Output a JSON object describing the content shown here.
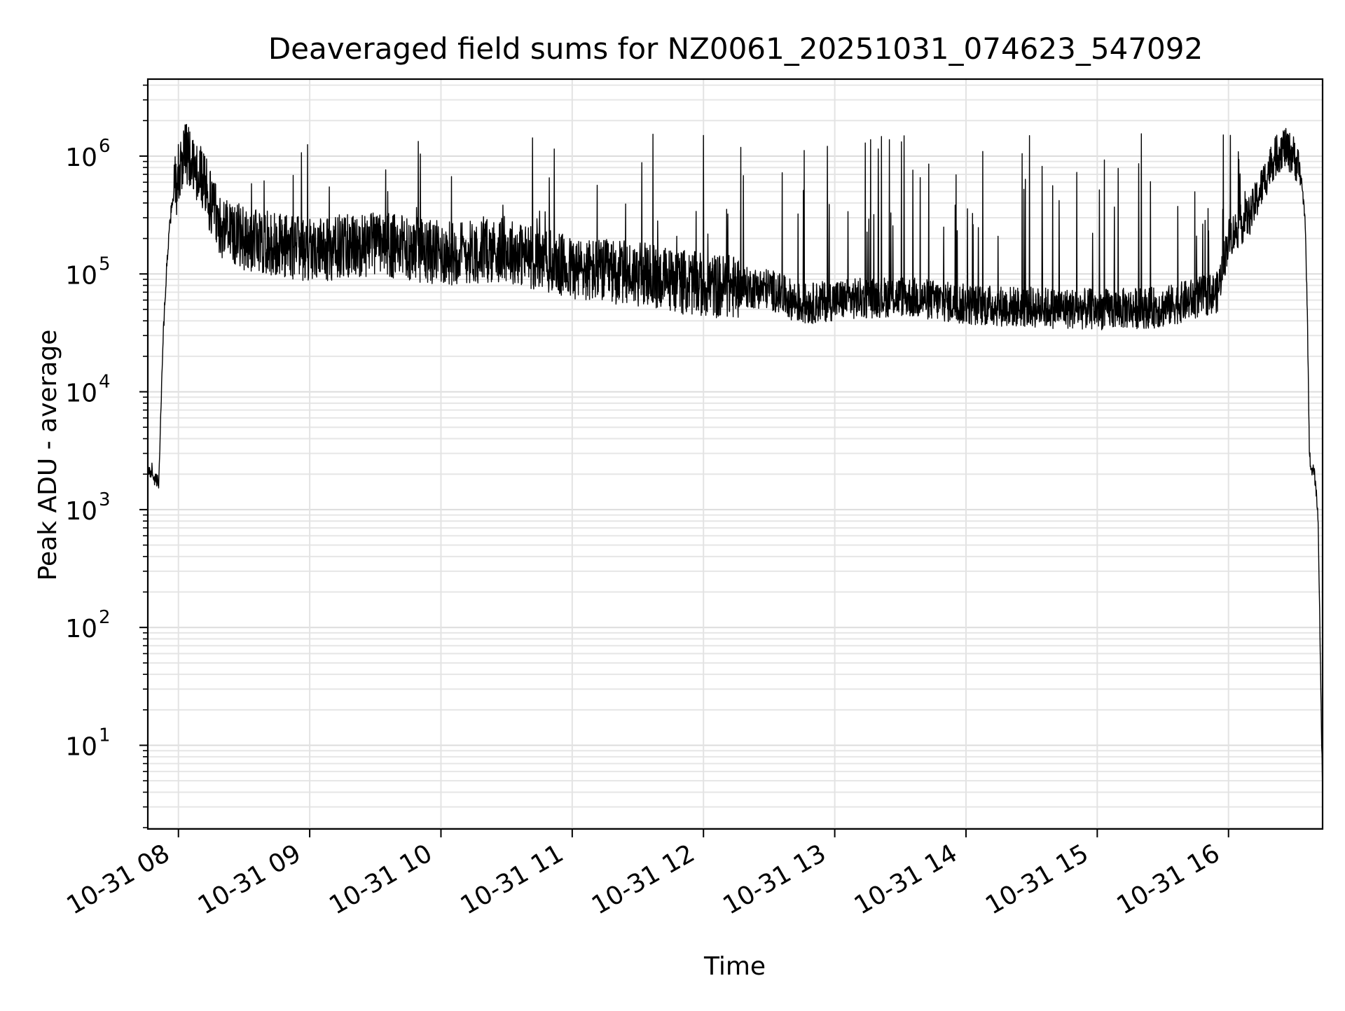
{
  "chart_data": {
    "type": "line",
    "title": "Deaveraged field sums for NZ0061_20251031_074623_547092",
    "xlabel": "Time",
    "ylabel": "Peak ADU - average",
    "yscale": "log",
    "ylim": [
      1.95,
      4500000
    ],
    "xlim": [
      "2025-10-31 07:46",
      "2025-10-31 16:43"
    ],
    "grid": true,
    "line_color": "#000000",
    "x_ticks": [
      {
        "value": "2025-10-31 08:00",
        "label": "10-31 08"
      },
      {
        "value": "2025-10-31 09:00",
        "label": "10-31 09"
      },
      {
        "value": "2025-10-31 10:00",
        "label": "10-31 10"
      },
      {
        "value": "2025-10-31 11:00",
        "label": "10-31 11"
      },
      {
        "value": "2025-10-31 12:00",
        "label": "10-31 12"
      },
      {
        "value": "2025-10-31 13:00",
        "label": "10-31 13"
      },
      {
        "value": "2025-10-31 14:00",
        "label": "10-31 14"
      },
      {
        "value": "2025-10-31 15:00",
        "label": "10-31 15"
      },
      {
        "value": "2025-10-31 16:00",
        "label": "10-31 16"
      }
    ],
    "y_ticks": [
      {
        "value": 10,
        "base": "10",
        "exp": "1"
      },
      {
        "value": 100,
        "base": "10",
        "exp": "2"
      },
      {
        "value": 1000,
        "base": "10",
        "exp": "3"
      },
      {
        "value": 10000,
        "base": "10",
        "exp": "4"
      },
      {
        "value": 100000,
        "base": "10",
        "exp": "5"
      },
      {
        "value": 1000000,
        "base": "10",
        "exp": "6"
      }
    ],
    "series": [
      {
        "x": [
          "2025-10-31 07:46",
          "2025-10-31 07:48",
          "2025-10-31 07:49",
          "2025-10-31 07:51",
          "2025-10-31 07:53",
          "2025-10-31 07:55",
          "2025-10-31 07:57",
          "2025-10-31 08:00",
          "2025-10-31 08:03",
          "2025-10-31 08:07",
          "2025-10-31 08:10",
          "2025-10-31 08:15",
          "2025-10-31 08:20",
          "2025-10-31 08:30",
          "2025-10-31 08:45",
          "2025-10-31 09:00",
          "2025-10-31 09:30",
          "2025-10-31 10:00",
          "2025-10-31 10:30",
          "2025-10-31 11:00",
          "2025-10-31 11:30",
          "2025-10-31 12:00",
          "2025-10-31 12:30",
          "2025-10-31 12:45",
          "2025-10-31 13:00",
          "2025-10-31 13:30",
          "2025-10-31 14:00",
          "2025-10-31 14:30",
          "2025-10-31 15:00",
          "2025-10-31 15:30",
          "2025-10-31 15:55",
          "2025-10-31 16:00",
          "2025-10-31 16:10",
          "2025-10-31 16:20",
          "2025-10-31 16:25",
          "2025-10-31 16:30",
          "2025-10-31 16:33",
          "2025-10-31 16:35",
          "2025-10-31 16:36",
          "2025-10-31 16:37",
          "2025-10-31 16:38",
          "2025-10-31 16:39",
          "2025-10-31 16:40",
          "2025-10-31 16:41",
          "2025-10-31 16:42",
          "2025-10-31 16:43"
        ],
        "y": [
          2000,
          2200,
          1800,
          1700,
          30000,
          150000,
          400000,
          700000,
          1100000,
          800000,
          700000,
          400000,
          250000,
          200000,
          180000,
          160000,
          180000,
          150000,
          160000,
          110000,
          100000,
          80000,
          75000,
          55000,
          60000,
          65000,
          55000,
          52000,
          50000,
          52000,
          70000,
          200000,
          320000,
          900000,
          1200000,
          1000000,
          700000,
          300000,
          50000,
          3000,
          2000,
          2200,
          1500,
          800,
          50,
          3.8
        ]
      }
    ]
  }
}
